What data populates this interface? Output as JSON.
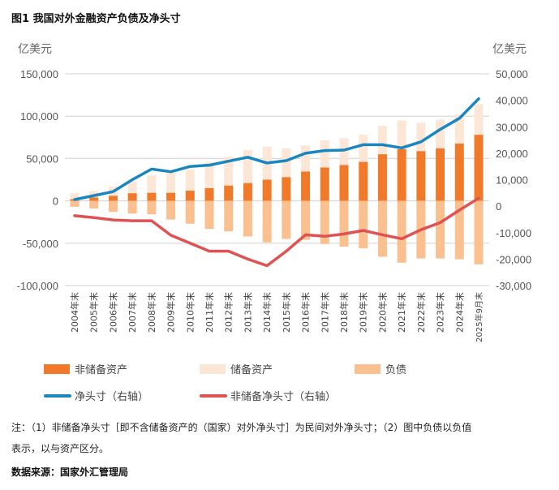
{
  "title": "图1 我国对外金融资产负债及净头寸",
  "unit_left": "亿美元",
  "unit_right": "亿美元",
  "chart_data": {
    "type": "bar",
    "title": "图1 我国对外金融资产负债及净头寸",
    "xlabel": "",
    "ylabel_left": "亿美元",
    "ylabel_right": "亿美元",
    "ylim_left": [
      -100000,
      150000
    ],
    "ylim_right": [
      -30000,
      50000
    ],
    "grid": true,
    "legend_position": "bottom",
    "categories": [
      "2004年末",
      "2005年末",
      "2006年末",
      "2007年末",
      "2008年末",
      "2009年末",
      "2010年末",
      "2011年末",
      "2012年末",
      "2013年末",
      "2014年末",
      "2015年末",
      "2016年末",
      "2017年末",
      "2018年末",
      "2019年末",
      "2020年末",
      "2021年末",
      "2022年末",
      "2023年末",
      "2024年末",
      "2025年9月末"
    ],
    "left_ticks": [
      "150,000",
      "100,000",
      "50,000",
      "0",
      "-50,000",
      "-100,000"
    ],
    "left_tick_values": [
      150000,
      100000,
      50000,
      0,
      -50000,
      -100000
    ],
    "right_ticks": [
      "50,000",
      "40,000",
      "30,000",
      "20,000",
      "10,000",
      "0",
      "-10,000",
      "-20,000",
      "-30,000"
    ],
    "right_tick_values": [
      50000,
      40000,
      30000,
      20000,
      10000,
      0,
      -10000,
      -20000,
      -30000
    ],
    "series": [
      {
        "name": "非储备资产",
        "type": "bar",
        "axis": "left",
        "color": "#F07A2A",
        "values": [
          2000,
          4000,
          6000,
          9000,
          9500,
          9500,
          12000,
          15000,
          18000,
          21000,
          25000,
          28000,
          34600,
          39400,
          42300,
          46000,
          55000,
          61000,
          58700,
          62000,
          67600,
          78000
        ]
      },
      {
        "name": "储备资产",
        "type": "bar",
        "axis": "left",
        "color": "#FCE6D5",
        "values": [
          7000,
          7500,
          11000,
          14000,
          20500,
          23500,
          25000,
          31000,
          34000,
          39000,
          39000,
          34000,
          30800,
          32000,
          31700,
          32000,
          33500,
          34000,
          33600,
          34000,
          34400,
          36000
        ]
      },
      {
        "name": "负债",
        "type": "bar",
        "axis": "left",
        "color": "#FAC090",
        "values": [
          -7000,
          -9000,
          -13000,
          -15000,
          -16000,
          -22000,
          -27000,
          -33000,
          -36000,
          -42000,
          -49000,
          -45000,
          -46000,
          -51000,
          -54000,
          -56000,
          -66000,
          -73000,
          -68000,
          -68000,
          -69000,
          -75000
        ]
      },
      {
        "name": "净头寸（右轴）",
        "type": "line",
        "axis": "right",
        "color": "#1A86C0",
        "values": [
          2500,
          4000,
          5500,
          10000,
          14000,
          13000,
          15000,
          15500,
          17000,
          18500,
          16300,
          17200,
          20000,
          21000,
          21200,
          23200,
          23200,
          22000,
          24300,
          29000,
          33200,
          40600
        ]
      },
      {
        "name": "非储备净头寸（右轴）",
        "type": "line",
        "axis": "right",
        "color": "#E05252",
        "values": [
          -3600,
          -4300,
          -5200,
          -5500,
          -5500,
          -11000,
          -14000,
          -17000,
          -17000,
          -20000,
          -22500,
          -17000,
          -10800,
          -11400,
          -10500,
          -9200,
          -10800,
          -12300,
          -8900,
          -6200,
          -1500,
          3000
        ]
      }
    ]
  },
  "legend": {
    "items": [
      {
        "label": "非储备资产",
        "color": "#F07A2A"
      },
      {
        "label": "储备资产",
        "color": "#FCE6D5"
      },
      {
        "label": "负债",
        "color": "#FAC090"
      },
      {
        "label": "净头寸（右轴）",
        "color": "#1A86C0"
      },
      {
        "label": "非储备净头寸（右轴）",
        "color": "#E05252"
      }
    ]
  },
  "note_line1": "注：（1）非储备净头寸［即不含储备资产的（国家）对外净头寸］为民间对外净头寸；（2）图中负债以负值",
  "note_line2": "表示，以与资产区分。",
  "source": "数据来源：国家外汇管理局"
}
